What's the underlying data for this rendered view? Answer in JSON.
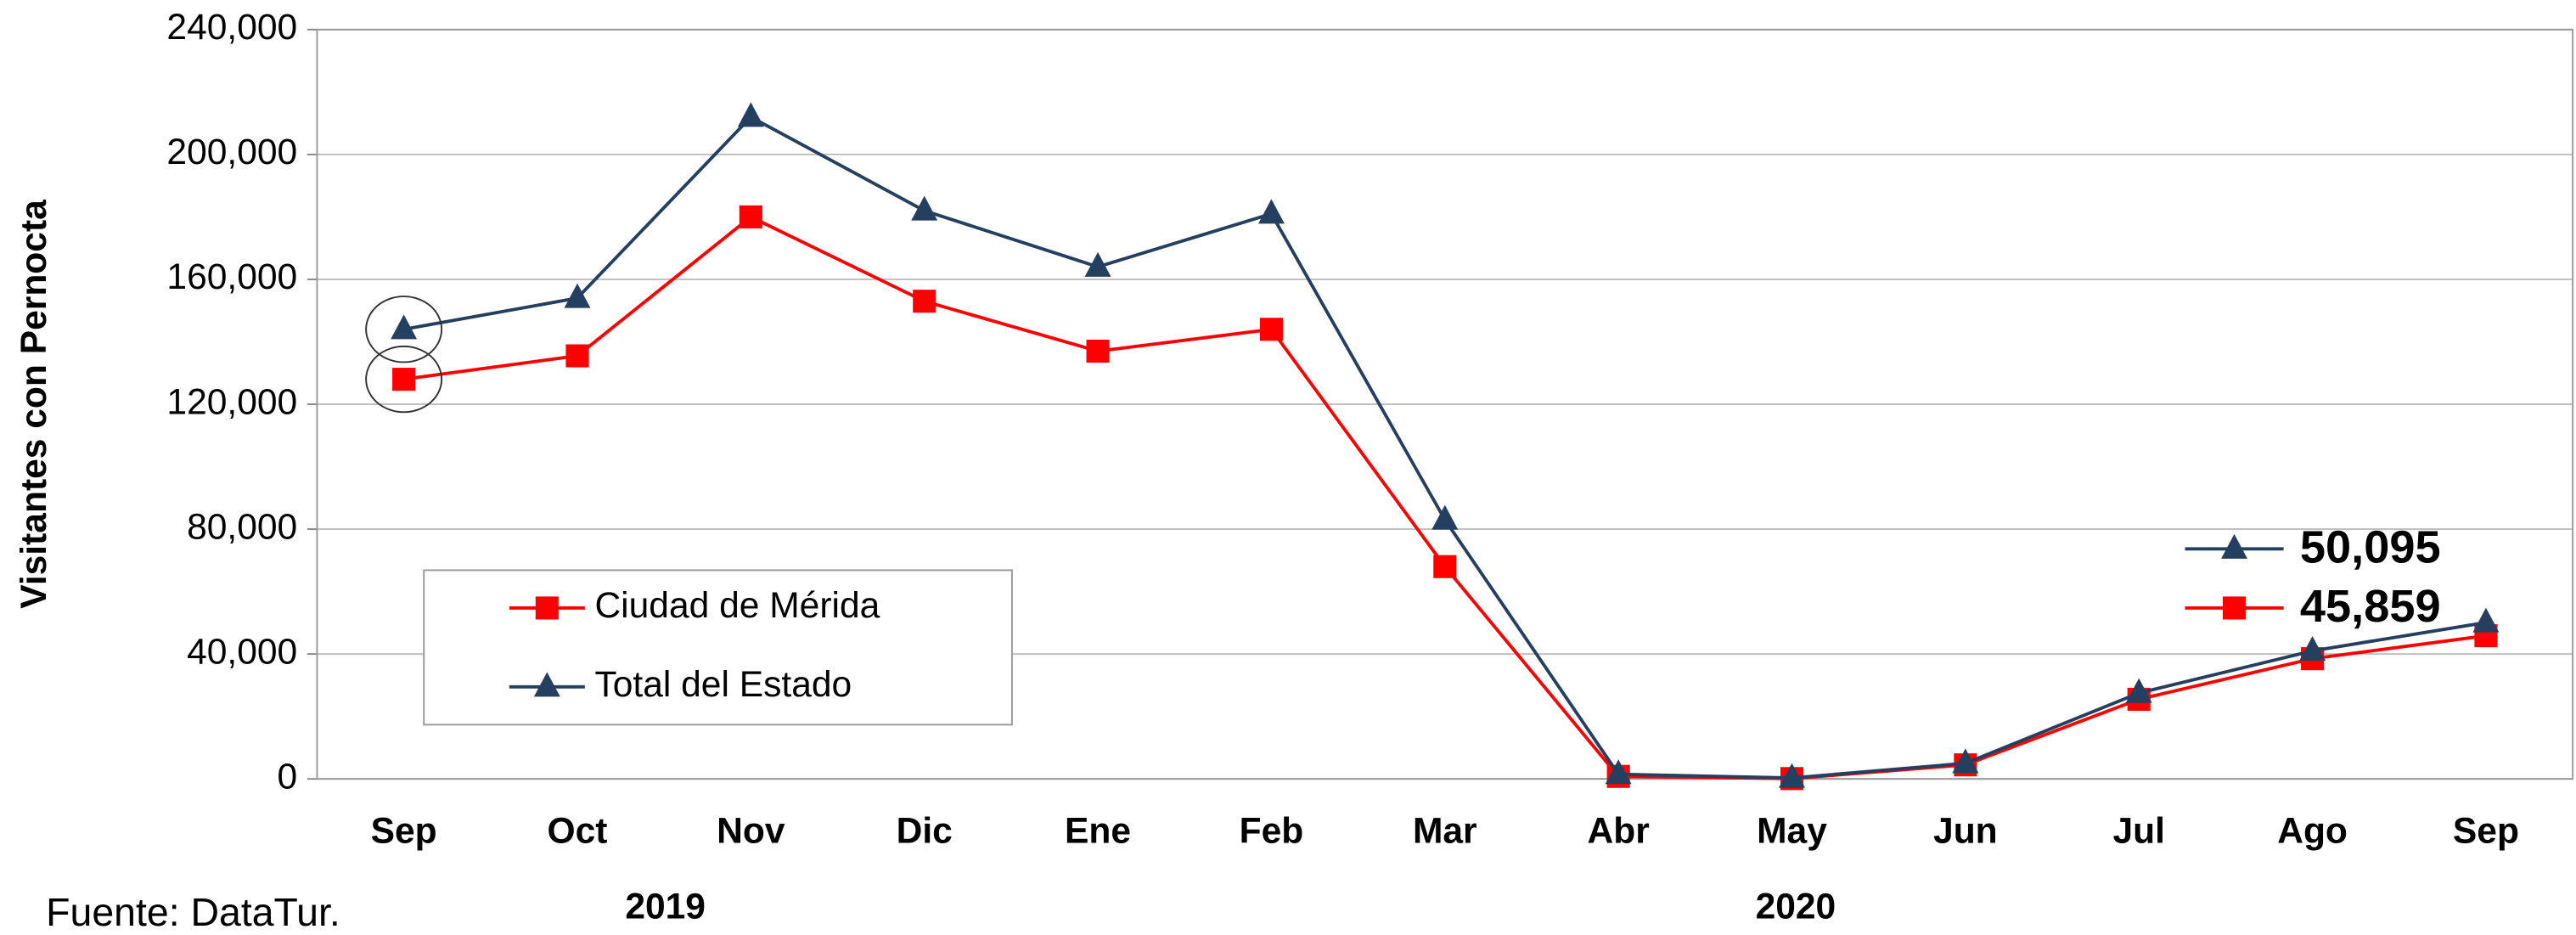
{
  "chart_data": {
    "type": "line",
    "y_label": "Visitantes con Pernocta",
    "categories": [
      "Sep",
      "Oct",
      "Nov",
      "Dic",
      "Ene",
      "Feb",
      "Mar",
      "Abr",
      "May",
      "Jun",
      "Jul",
      "Ago",
      "Sep"
    ],
    "year_labels": [
      "2019",
      "2020"
    ],
    "source": "Fuente: DataTur.",
    "series": [
      {
        "name": "Ciudad de Mérida",
        "color": "#ff0000",
        "marker": "square",
        "values": [
          128000,
          135500,
          180000,
          153000,
          137000,
          144000,
          68000,
          800,
          100,
          4500,
          25500,
          38500,
          45859
        ],
        "value_labels": [
          null,
          null,
          null,
          null,
          null,
          null,
          null,
          null,
          null,
          null,
          null,
          null,
          "45,859"
        ]
      },
      {
        "name": "Total del Estado",
        "color": "#243f60",
        "marker": "triangle",
        "values": [
          144000,
          154000,
          212000,
          182000,
          164000,
          181000,
          83000,
          1500,
          300,
          5000,
          27500,
          41000,
          50095
        ],
        "value_labels": [
          null,
          null,
          null,
          null,
          null,
          null,
          null,
          null,
          null,
          null,
          null,
          null,
          "50,095"
        ]
      }
    ],
    "ylim": [
      0,
      240000
    ],
    "yticks": [
      0,
      {
        "value": 40000,
        "label": "40,000"
      },
      {
        "value": 80000,
        "label": "80,000"
      },
      {
        "value": 120000,
        "label": "120,000"
      },
      {
        "value": 160000,
        "label": "160,000"
      },
      {
        "value": 200000,
        "label": "200,000"
      },
      {
        "value": 240000,
        "label": "240,000"
      }
    ],
    "grid": true
  }
}
